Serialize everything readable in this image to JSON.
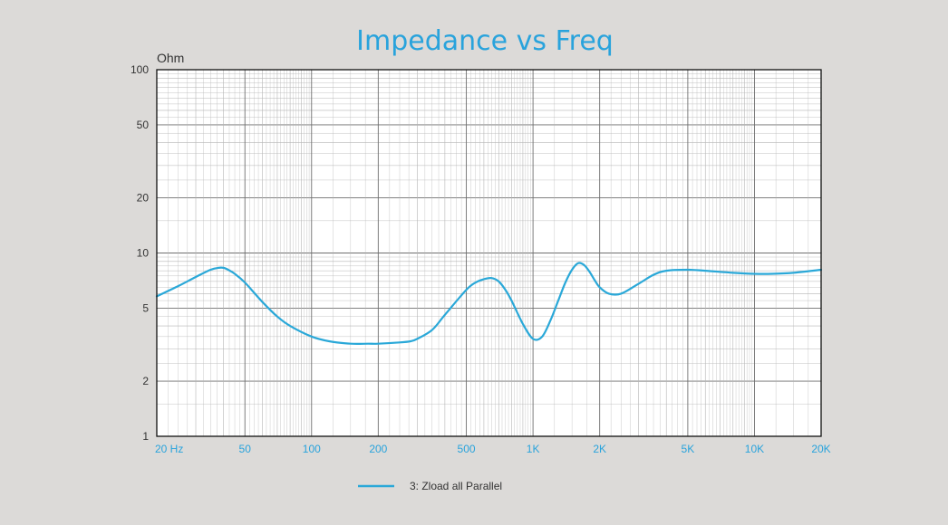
{
  "colors": {
    "background": "#dcdad8",
    "plot_background": "#ffffff",
    "title": "#29a3dc",
    "series": "#2aa8d8",
    "x_tick_labels": "#29a3dc",
    "grid_major": "#6f6f6f",
    "grid_minor": "#b5b5b5",
    "frame": "#111111"
  },
  "chart_data": {
    "type": "line",
    "title": "Impedance vs Freq",
    "xlabel": "",
    "ylabel": "Ohm",
    "x_scale": "log",
    "y_scale": "log",
    "xlim": [
      20,
      20000
    ],
    "ylim": [
      1,
      100
    ],
    "grid": true,
    "legend_position": "bottom-center",
    "x_ticks": [
      {
        "value": 20,
        "label": "20  Hz"
      },
      {
        "value": 50,
        "label": "50"
      },
      {
        "value": 100,
        "label": "100"
      },
      {
        "value": 200,
        "label": "200"
      },
      {
        "value": 500,
        "label": "500"
      },
      {
        "value": 1000,
        "label": "1K"
      },
      {
        "value": 2000,
        "label": "2K"
      },
      {
        "value": 5000,
        "label": "5K"
      },
      {
        "value": 10000,
        "label": "10K"
      },
      {
        "value": 20000,
        "label": "20K"
      }
    ],
    "y_ticks": [
      {
        "value": 1,
        "label": "1"
      },
      {
        "value": 2,
        "label": "2"
      },
      {
        "value": 5,
        "label": "5"
      },
      {
        "value": 10,
        "label": "10"
      },
      {
        "value": 20,
        "label": "20"
      },
      {
        "value": 50,
        "label": "50"
      },
      {
        "value": 100,
        "label": "100"
      }
    ],
    "series": [
      {
        "name": "3: Zload all Parallel",
        "x": [
          20,
          25,
          30,
          35,
          38,
          40,
          42,
          45,
          50,
          60,
          70,
          80,
          100,
          120,
          150,
          180,
          200,
          250,
          280,
          300,
          350,
          400,
          500,
          550,
          600,
          650,
          700,
          750,
          800,
          900,
          1000,
          1100,
          1200,
          1300,
          1400,
          1500,
          1600,
          1700,
          1800,
          1900,
          2000,
          2200,
          2500,
          3000,
          3500,
          4000,
          5000,
          6000,
          8000,
          10000,
          12000,
          15000,
          20000
        ],
        "y": [
          5.8,
          6.6,
          7.4,
          8.1,
          8.3,
          8.3,
          8.1,
          7.7,
          6.9,
          5.4,
          4.5,
          4.0,
          3.5,
          3.3,
          3.2,
          3.2,
          3.2,
          3.25,
          3.3,
          3.4,
          3.8,
          4.6,
          6.3,
          6.9,
          7.2,
          7.3,
          7.0,
          6.3,
          5.5,
          4.1,
          3.4,
          3.5,
          4.3,
          5.5,
          6.9,
          8.1,
          8.8,
          8.6,
          7.9,
          7.1,
          6.5,
          6.0,
          6.0,
          6.8,
          7.6,
          8.0,
          8.1,
          8.0,
          7.8,
          7.7,
          7.7,
          7.8,
          8.1
        ]
      }
    ]
  }
}
